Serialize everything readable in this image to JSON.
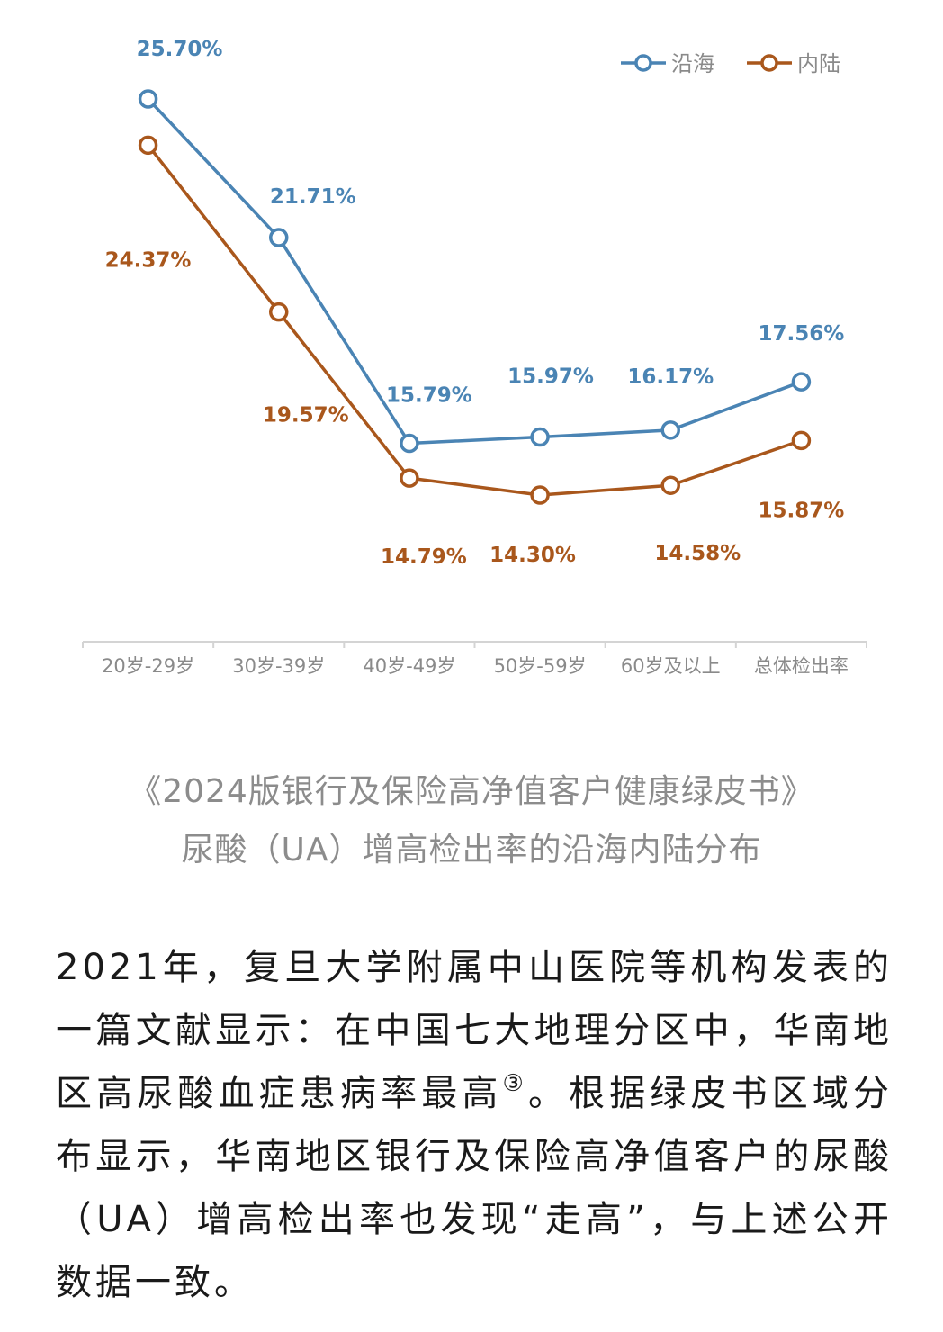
{
  "chart_data": {
    "type": "line",
    "title": "",
    "categories": [
      "20岁-29岁",
      "30岁-39岁",
      "40岁-49岁",
      "50岁-59岁",
      "60岁及以上",
      "总体检出率"
    ],
    "series": [
      {
        "name": "沿海",
        "color": "#4a84b4",
        "values": [
          25.7,
          21.71,
          15.79,
          15.97,
          16.17,
          17.56
        ],
        "labels": [
          "25.70%",
          "21.71%",
          "15.79%",
          "15.97%",
          "16.17%",
          "17.56%"
        ]
      },
      {
        "name": "内陆",
        "color": "#a9571c",
        "values": [
          24.37,
          19.57,
          14.79,
          14.3,
          14.58,
          15.87
        ],
        "labels": [
          "24.37%",
          "19.57%",
          "14.79%",
          "14.30%",
          "14.58%",
          "15.87%"
        ]
      }
    ],
    "ylim": [
      11,
      27
    ],
    "xlabel": "",
    "ylabel": "",
    "grid": false,
    "legend": "top-right"
  },
  "caption": {
    "line1": "《2024版银行及保险高净值客户健康绿皮书》",
    "line2": "尿酸（UA）增高检出率的沿海内陆分布"
  },
  "paragraph": {
    "part1": "2021年，复旦大学附属中山医院等机构发表的一篇文献显示：在中国七大地理分区中，华南地区高尿酸血症患病率最高",
    "footnote": "③",
    "part2": "。根据绿皮书区域分布显示，华南地区银行及保险高净值客户的尿酸（UA）增高检出率也发现“走高”，与上述公开数据一致。"
  }
}
